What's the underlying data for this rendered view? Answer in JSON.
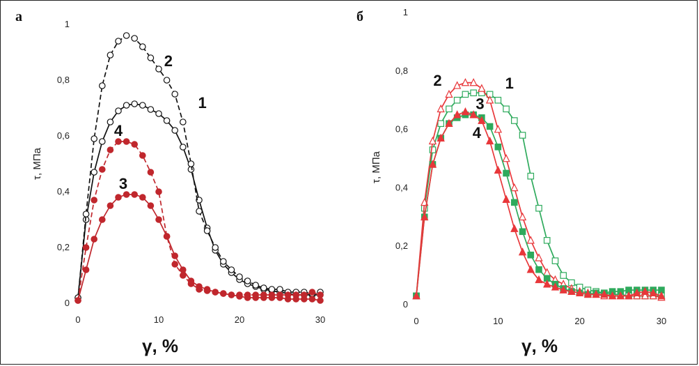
{
  "chart_data": [
    {
      "type": "line",
      "panel_label": "а",
      "xlabel": "γ, %",
      "ylabel": "τ, МПа",
      "xlim": [
        0,
        30
      ],
      "ylim": [
        0,
        1
      ],
      "xticks": [
        "0",
        "10",
        "20",
        "30"
      ],
      "yticks": [
        "0",
        "0,2",
        "0,4",
        "0,6",
        "0,8",
        "1"
      ],
      "series": [
        {
          "name": "1",
          "color": "#111111",
          "dash": "solid",
          "marker": "open-circle",
          "x": [
            0,
            1,
            2,
            3,
            4,
            5,
            6,
            7,
            8,
            9,
            10,
            11,
            12,
            13,
            14,
            15,
            16,
            17,
            18,
            19,
            20,
            21,
            22,
            23,
            24,
            25,
            26,
            27,
            28,
            29,
            30
          ],
          "y": [
            0.02,
            0.3,
            0.47,
            0.58,
            0.65,
            0.69,
            0.71,
            0.715,
            0.71,
            0.695,
            0.68,
            0.655,
            0.62,
            0.56,
            0.48,
            0.37,
            0.27,
            0.19,
            0.14,
            0.11,
            0.085,
            0.07,
            0.06,
            0.05,
            0.045,
            0.04,
            0.035,
            0.03,
            0.03,
            0.03,
            0.03
          ]
        },
        {
          "name": "2",
          "color": "#111111",
          "dash": "dashed",
          "marker": "open-circle",
          "x": [
            0,
            1,
            2,
            3,
            4,
            5,
            6,
            7,
            8,
            9,
            10,
            11,
            12,
            13,
            14,
            15,
            16,
            17,
            18,
            19,
            20,
            21,
            22,
            23,
            24,
            25,
            26,
            27,
            28,
            29,
            30
          ],
          "y": [
            0.02,
            0.32,
            0.59,
            0.78,
            0.89,
            0.94,
            0.96,
            0.95,
            0.92,
            0.88,
            0.84,
            0.8,
            0.75,
            0.65,
            0.5,
            0.33,
            0.26,
            0.2,
            0.15,
            0.12,
            0.095,
            0.08,
            0.065,
            0.055,
            0.05,
            0.05,
            0.04,
            0.04,
            0.04,
            0.035,
            0.04
          ]
        },
        {
          "name": "3",
          "color": "#c0272d",
          "dash": "solid",
          "marker": "filled-circle",
          "x": [
            0,
            1,
            2,
            3,
            4,
            5,
            6,
            7,
            8,
            9,
            10,
            11,
            12,
            13,
            14,
            15,
            16,
            17,
            18,
            19,
            20,
            21,
            22,
            23,
            24,
            25,
            26,
            27,
            28,
            29,
            30
          ],
          "y": [
            0.01,
            0.12,
            0.23,
            0.3,
            0.35,
            0.38,
            0.39,
            0.39,
            0.38,
            0.35,
            0.3,
            0.24,
            0.17,
            0.12,
            0.08,
            0.06,
            0.05,
            0.04,
            0.035,
            0.03,
            0.025,
            0.02,
            0.02,
            0.02,
            0.02,
            0.02,
            0.015,
            0.015,
            0.015,
            0.015,
            0.01
          ]
        },
        {
          "name": "4",
          "color": "#c0272d",
          "dash": "dashed",
          "marker": "filled-circle",
          "x": [
            0,
            1,
            2,
            3,
            4,
            5,
            6,
            7,
            8,
            9,
            10,
            11,
            12,
            13,
            14,
            15,
            16,
            17,
            18,
            19,
            20,
            21,
            22,
            23,
            24,
            25,
            26,
            27,
            28,
            29,
            30
          ],
          "y": [
            0.01,
            0.2,
            0.37,
            0.48,
            0.55,
            0.58,
            0.58,
            0.57,
            0.53,
            0.47,
            0.4,
            0.24,
            0.14,
            0.1,
            0.07,
            0.05,
            0.045,
            0.04,
            0.035,
            0.03,
            0.03,
            0.03,
            0.03,
            0.03,
            0.03,
            0.03,
            0.03,
            0.03,
            0.03,
            0.04,
            0.03
          ]
        }
      ],
      "annotations": [
        {
          "text": "2",
          "x": 11.2,
          "y": 0.85
        },
        {
          "text": "1",
          "x": 15.4,
          "y": 0.7
        },
        {
          "text": "4",
          "x": 5.0,
          "y": 0.6
        },
        {
          "text": "3",
          "x": 5.6,
          "y": 0.41
        }
      ]
    },
    {
      "type": "line",
      "panel_label": "б",
      "xlabel": "γ, %",
      "ylabel": "τ, МПа",
      "xlim": [
        0,
        30
      ],
      "ylim": [
        0,
        1
      ],
      "xticks": [
        "0",
        "10",
        "20",
        "30"
      ],
      "yticks": [
        "0",
        "0,2",
        "0,4",
        "0,6",
        "0,8",
        "1"
      ],
      "series": [
        {
          "name": "1",
          "color": "#2eaa5c",
          "dash": "solid",
          "marker": "open-square",
          "x": [
            0,
            1,
            2,
            3,
            4,
            5,
            6,
            7,
            8,
            9,
            10,
            11,
            12,
            13,
            14,
            15,
            16,
            17,
            18,
            19,
            20,
            21,
            22,
            23,
            24,
            25,
            26,
            27,
            28,
            29,
            30
          ],
          "y": [
            0.03,
            0.33,
            0.53,
            0.62,
            0.67,
            0.7,
            0.72,
            0.725,
            0.725,
            0.72,
            0.7,
            0.67,
            0.63,
            0.58,
            0.44,
            0.33,
            0.22,
            0.15,
            0.1,
            0.075,
            0.06,
            0.05,
            0.045,
            0.04,
            0.035,
            0.035,
            0.03,
            0.03,
            0.03,
            0.03,
            0.03
          ]
        },
        {
          "name": "2",
          "color": "#e8373a",
          "dash": "solid",
          "marker": "open-triangle",
          "x": [
            0,
            1,
            2,
            3,
            4,
            5,
            6,
            7,
            8,
            9,
            10,
            11,
            12,
            13,
            14,
            15,
            16,
            17,
            18,
            19,
            20,
            21,
            22,
            23,
            24,
            25,
            26,
            27,
            28,
            29,
            30
          ],
          "y": [
            0.03,
            0.35,
            0.56,
            0.67,
            0.72,
            0.75,
            0.76,
            0.76,
            0.74,
            0.7,
            0.6,
            0.5,
            0.4,
            0.3,
            0.22,
            0.16,
            0.11,
            0.085,
            0.07,
            0.055,
            0.045,
            0.04,
            0.035,
            0.03,
            0.03,
            0.03,
            0.03,
            0.03,
            0.03,
            0.03,
            0.025
          ]
        },
        {
          "name": "3",
          "color": "#2eaa5c",
          "dash": "solid",
          "marker": "filled-square",
          "x": [
            0,
            1,
            2,
            3,
            4,
            5,
            6,
            7,
            8,
            9,
            10,
            11,
            12,
            13,
            14,
            15,
            16,
            17,
            18,
            19,
            20,
            21,
            22,
            23,
            24,
            25,
            26,
            27,
            28,
            29,
            30
          ],
          "y": [
            0.03,
            0.3,
            0.48,
            0.57,
            0.62,
            0.64,
            0.65,
            0.65,
            0.64,
            0.61,
            0.54,
            0.45,
            0.35,
            0.25,
            0.17,
            0.12,
            0.09,
            0.07,
            0.055,
            0.045,
            0.04,
            0.035,
            0.04,
            0.04,
            0.045,
            0.045,
            0.05,
            0.05,
            0.05,
            0.05,
            0.05
          ]
        },
        {
          "name": "4",
          "color": "#e8373a",
          "dash": "solid",
          "marker": "filled-triangle",
          "x": [
            0,
            1,
            2,
            3,
            4,
            5,
            6,
            7,
            8,
            9,
            10,
            11,
            12,
            13,
            14,
            15,
            16,
            17,
            18,
            19,
            20,
            21,
            22,
            23,
            24,
            25,
            26,
            27,
            28,
            29,
            30
          ],
          "y": [
            0.03,
            0.3,
            0.48,
            0.57,
            0.62,
            0.65,
            0.66,
            0.65,
            0.63,
            0.56,
            0.46,
            0.36,
            0.26,
            0.18,
            0.12,
            0.085,
            0.07,
            0.06,
            0.05,
            0.045,
            0.04,
            0.035,
            0.035,
            0.035,
            0.03,
            0.03,
            0.03,
            0.04,
            0.045,
            0.04,
            0.03
          ]
        }
      ],
      "annotations": [
        {
          "text": "2",
          "x": 2.6,
          "y": 0.75
        },
        {
          "text": "1",
          "x": 11.4,
          "y": 0.74
        },
        {
          "text": "3",
          "x": 7.8,
          "y": 0.67
        },
        {
          "text": "4",
          "x": 7.4,
          "y": 0.57
        }
      ]
    }
  ]
}
